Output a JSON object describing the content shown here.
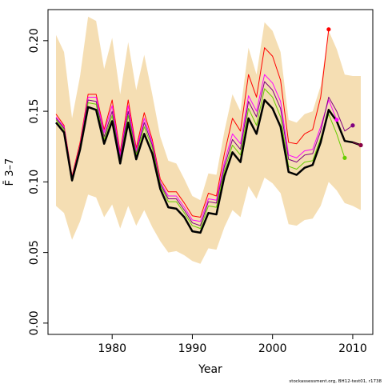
{
  "chart_data": {
    "type": "line",
    "title": "",
    "xlabel": "Year",
    "ylabel": "F̄ 3–7",
    "xlim": [
      1972,
      2012.5
    ],
    "ylim": [
      -0.008,
      0.222
    ],
    "x_ticks": [
      1980,
      1990,
      2000,
      2010
    ],
    "y_ticks": [
      0.0,
      0.05,
      0.1,
      0.15,
      0.2
    ],
    "y_tick_labels": [
      "0.00",
      "0.05",
      "0.10",
      "0.15",
      "0.20"
    ],
    "band": {
      "x": [
        1973,
        1974,
        1975,
        1976,
        1977,
        1978,
        1979,
        1980,
        1981,
        1982,
        1983,
        1984,
        1985,
        1986,
        1987,
        1988,
        1989,
        1990,
        1991,
        1992,
        1993,
        1994,
        1995,
        1996,
        1997,
        1998,
        1999,
        2000,
        2001,
        2002,
        2003,
        2004,
        2005,
        2006,
        2007,
        2008,
        2009,
        2010,
        2011
      ],
      "upper": [
        0.204,
        0.192,
        0.145,
        0.175,
        0.217,
        0.214,
        0.18,
        0.202,
        0.162,
        0.199,
        0.165,
        0.19,
        0.162,
        0.132,
        0.115,
        0.113,
        0.102,
        0.09,
        0.087,
        0.106,
        0.105,
        0.136,
        0.162,
        0.15,
        0.195,
        0.176,
        0.213,
        0.207,
        0.192,
        0.144,
        0.142,
        0.148,
        0.15,
        0.168,
        0.207,
        0.194,
        0.176,
        0.175,
        0.175
      ],
      "lower": [
        0.083,
        0.078,
        0.059,
        0.072,
        0.091,
        0.089,
        0.075,
        0.084,
        0.067,
        0.083,
        0.069,
        0.08,
        0.068,
        0.058,
        0.05,
        0.051,
        0.048,
        0.044,
        0.042,
        0.053,
        0.052,
        0.068,
        0.08,
        0.075,
        0.097,
        0.088,
        0.103,
        0.099,
        0.092,
        0.07,
        0.069,
        0.073,
        0.074,
        0.083,
        0.1,
        0.094,
        0.085,
        0.083,
        0.08
      ]
    },
    "series": [
      {
        "color": "#ff0000",
        "x": [
          1973,
          1974,
          1975,
          1976,
          1977,
          1978,
          1979,
          1980,
          1981,
          1982,
          1983,
          1984,
          1985,
          1986,
          1987,
          1988,
          1989,
          1990,
          1991,
          1992,
          1993,
          1994,
          1995,
          1996,
          1997,
          1998,
          1999,
          2000,
          2001,
          2002,
          2003,
          2004,
          2005,
          2006,
          2007
        ],
        "y": [
          0.148,
          0.14,
          0.104,
          0.128,
          0.162,
          0.162,
          0.137,
          0.158,
          0.121,
          0.158,
          0.124,
          0.149,
          0.13,
          0.102,
          0.093,
          0.093,
          0.085,
          0.076,
          0.075,
          0.092,
          0.09,
          0.12,
          0.145,
          0.136,
          0.176,
          0.16,
          0.195,
          0.189,
          0.172,
          0.128,
          0.127,
          0.134,
          0.137,
          0.16,
          0.208
        ],
        "endpoint": true
      },
      {
        "color": "#ff00ff",
        "x": [
          1973,
          1974,
          1975,
          1976,
          1977,
          1978,
          1979,
          1980,
          1981,
          1982,
          1983,
          1984,
          1985,
          1986,
          1987,
          1988,
          1989,
          1990,
          1991,
          1992,
          1993,
          1994,
          1995,
          1996,
          1997,
          1998,
          1999,
          2000,
          2001,
          2002,
          2003,
          2004,
          2005,
          2006,
          2007,
          2008
        ],
        "y": [
          0.146,
          0.139,
          0.103,
          0.126,
          0.16,
          0.16,
          0.135,
          0.154,
          0.119,
          0.154,
          0.122,
          0.145,
          0.128,
          0.1,
          0.09,
          0.09,
          0.082,
          0.073,
          0.072,
          0.088,
          0.087,
          0.114,
          0.134,
          0.127,
          0.161,
          0.15,
          0.176,
          0.17,
          0.157,
          0.119,
          0.117,
          0.122,
          0.123,
          0.139,
          0.158,
          0.144
        ],
        "endpoint": true
      },
      {
        "color": "#800080",
        "x": [
          1973,
          1974,
          1975,
          1976,
          1977,
          1978,
          1979,
          1980,
          1981,
          1982,
          1983,
          1984,
          1985,
          1986,
          1987,
          1988,
          1989,
          1990,
          1991,
          1992,
          1993,
          1994,
          1995,
          1996,
          1997,
          1998,
          1999,
          2000,
          2001,
          2002,
          2003,
          2004,
          2005,
          2006,
          2007,
          2008,
          2009,
          2010
        ],
        "y": [
          0.145,
          0.138,
          0.102,
          0.125,
          0.158,
          0.157,
          0.132,
          0.15,
          0.117,
          0.15,
          0.12,
          0.142,
          0.126,
          0.099,
          0.088,
          0.088,
          0.08,
          0.071,
          0.069,
          0.086,
          0.085,
          0.111,
          0.13,
          0.123,
          0.157,
          0.146,
          0.171,
          0.165,
          0.152,
          0.116,
          0.114,
          0.119,
          0.12,
          0.136,
          0.16,
          0.15,
          0.136,
          0.14
        ],
        "endpoint": true
      },
      {
        "color": "#66cc00",
        "x": [
          1973,
          1974,
          1975,
          1976,
          1977,
          1978,
          1979,
          1980,
          1981,
          1982,
          1983,
          1984,
          1985,
          1986,
          1987,
          1988,
          1989,
          1990,
          1991,
          1992,
          1993,
          1994,
          1995,
          1996,
          1997,
          1998,
          1999,
          2000,
          2001,
          2002,
          2003,
          2004,
          2005,
          2006,
          2007,
          2008,
          2009
        ],
        "y": [
          0.144,
          0.137,
          0.102,
          0.125,
          0.156,
          0.155,
          0.13,
          0.147,
          0.115,
          0.147,
          0.119,
          0.139,
          0.124,
          0.098,
          0.086,
          0.086,
          0.078,
          0.069,
          0.067,
          0.083,
          0.082,
          0.108,
          0.126,
          0.119,
          0.152,
          0.14,
          0.166,
          0.16,
          0.146,
          0.111,
          0.109,
          0.114,
          0.115,
          0.131,
          0.148,
          0.134,
          0.117
        ],
        "endpoint": true
      },
      {
        "color": "#000000",
        "width": 2.5,
        "x": [
          1973,
          1974,
          1975,
          1976,
          1977,
          1978,
          1979,
          1980,
          1981,
          1982,
          1983,
          1984,
          1985,
          1986,
          1987,
          1988,
          1989,
          1990,
          1991,
          1992,
          1993,
          1994,
          1995,
          1996,
          1997,
          1998,
          1999,
          2000,
          2001,
          2002,
          2003,
          2004,
          2005,
          2006,
          2007,
          2008,
          2009,
          2010,
          2011
        ],
        "y": [
          0.142,
          0.135,
          0.101,
          0.123,
          0.153,
          0.151,
          0.127,
          0.143,
          0.113,
          0.142,
          0.116,
          0.134,
          0.12,
          0.095,
          0.082,
          0.081,
          0.075,
          0.065,
          0.064,
          0.078,
          0.077,
          0.104,
          0.121,
          0.114,
          0.145,
          0.134,
          0.158,
          0.152,
          0.139,
          0.107,
          0.105,
          0.11,
          0.112,
          0.128,
          0.151,
          0.143,
          0.129,
          0.128,
          0.126
        ],
        "endpoint": true
      },
      {
        "color": "#8b0045",
        "width": 1,
        "x": [
          2010,
          2011
        ],
        "y": [
          0.128,
          0.126
        ],
        "endpoint": true
      }
    ],
    "footnote": "stockassessment.org, BH12-test01, r1738",
    "grid": false,
    "legend": "none"
  }
}
